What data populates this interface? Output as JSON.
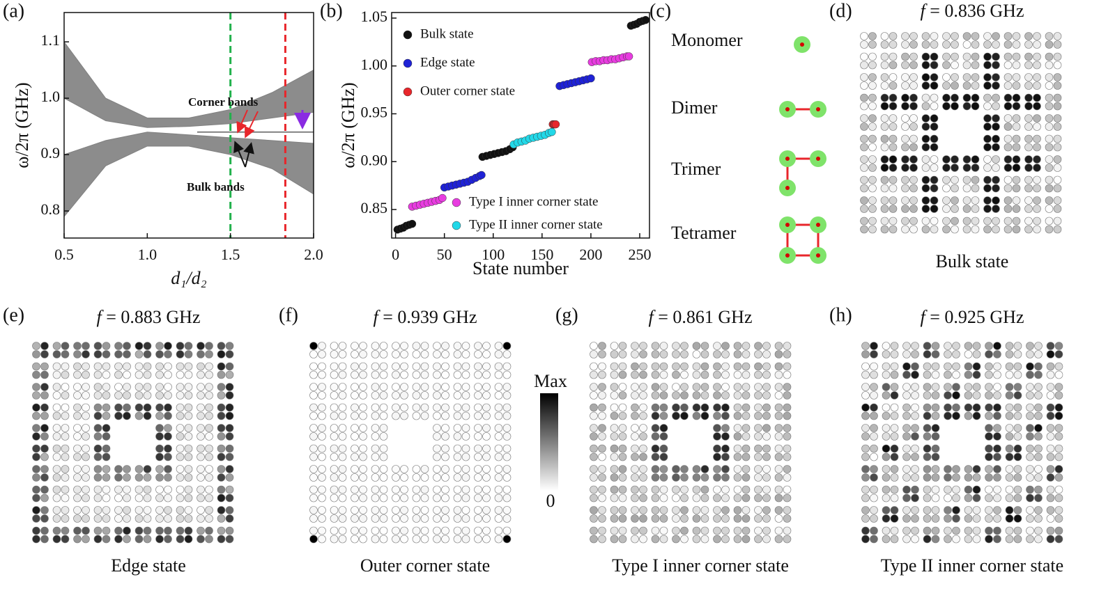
{
  "chart_data": [
    {
      "type": "line",
      "panel": "(a)",
      "ylabel": "ω/2π (GHz)",
      "xlabel": "d₁/d₂",
      "x": [
        0.5,
        0.75,
        1.0,
        1.25,
        1.5,
        1.75,
        2.0
      ],
      "bands": [
        {
          "color": "#808080",
          "lower": [
            1.0,
            0.96,
            0.948,
            0.95,
            0.955,
            0.965,
            0.975
          ],
          "upper": [
            1.1,
            1.0,
            0.965,
            0.965,
            0.98,
            1.01,
            1.05
          ]
        },
        {
          "color": "#808080",
          "lower": [
            0.79,
            0.88,
            0.915,
            0.915,
            0.9,
            0.875,
            0.83
          ],
          "upper": [
            0.9,
            0.925,
            0.94,
            0.935,
            0.93,
            0.925,
            0.92
          ]
        }
      ],
      "corner_band": {
        "color": "#808080",
        "x": [
          1.3,
          2.0
        ],
        "values": [
          0.94,
          0.94
        ]
      },
      "vlines": [
        {
          "x": 1.5,
          "color": "#22b14c"
        },
        {
          "x": 1.83,
          "color": "#e8262b"
        }
      ],
      "annotations": [
        {
          "text": "Corner bands",
          "color": "#e8262b"
        },
        {
          "text": "Bulk bands",
          "color": "#111111"
        }
      ],
      "xlim": [
        0.5,
        2.0
      ],
      "ylim": [
        0.752,
        1.152
      ],
      "xticks": [
        0.5,
        {
          "value": 1.0,
          "label": "1.0"
        },
        1.5,
        {
          "value": 2.0,
          "label": "2.0"
        }
      ],
      "yticks": [
        0.8,
        0.9,
        {
          "value": 1.0,
          "label": "1.0"
        },
        1.1
      ]
    },
    {
      "type": "scatter",
      "panel": "(b)",
      "ylabel": "ω/2π (GHz)",
      "xlabel": "State number",
      "series": [
        {
          "name": "Bulk state",
          "color": "#111111",
          "x": [
            2,
            5,
            8,
            11,
            14,
            17,
            89,
            93,
            97,
            101,
            105,
            109,
            113,
            117,
            120,
            241,
            244,
            247,
            250,
            253,
            256
          ],
          "values": [
            0.829,
            0.83,
            0.831,
            0.833,
            0.834,
            0.835,
            0.905,
            0.906,
            0.907,
            0.908,
            0.909,
            0.91,
            0.911,
            0.913,
            0.915,
            1.042,
            1.043,
            1.044,
            1.046,
            1.047,
            1.048
          ]
        },
        {
          "name": "Edge state",
          "color": "#1f22d6",
          "x": [
            50,
            54,
            58,
            62,
            66,
            70,
            74,
            78,
            82,
            86,
            88,
            168,
            172,
            176,
            180,
            184,
            188,
            192,
            196,
            200
          ],
          "values": [
            0.873,
            0.874,
            0.875,
            0.876,
            0.877,
            0.878,
            0.879,
            0.881,
            0.883,
            0.885,
            0.886,
            0.979,
            0.98,
            0.981,
            0.982,
            0.983,
            0.984,
            0.985,
            0.986,
            0.987
          ]
        },
        {
          "name": "Outer corner state",
          "color": "#e8262b",
          "x": [
            161,
            162,
            163,
            164
          ],
          "values": [
            0.939,
            0.939,
            0.939,
            0.939
          ]
        },
        {
          "name": "Type I inner corner state",
          "color": "#e83ce0",
          "x": [
            17,
            21,
            25,
            29,
            33,
            37,
            41,
            45,
            48,
            201,
            205,
            209,
            213,
            217,
            221,
            225,
            229,
            233,
            237,
            239
          ],
          "values": [
            0.853,
            0.854,
            0.855,
            0.856,
            0.857,
            0.858,
            0.859,
            0.86,
            0.862,
            1.004,
            1.005,
            1.005,
            1.006,
            1.006,
            1.007,
            1.007,
            1.008,
            1.009,
            1.01,
            1.01
          ]
        },
        {
          "name": "Type II inner corner state",
          "color": "#22d8e8",
          "x": [
            121,
            125,
            129,
            133,
            137,
            141,
            145,
            149,
            153,
            157,
            160
          ],
          "values": [
            0.918,
            0.92,
            0.921,
            0.922,
            0.924,
            0.925,
            0.926,
            0.927,
            0.928,
            0.93,
            0.931
          ]
        }
      ],
      "xlim": [
        -4,
        260
      ],
      "ylim": [
        0.8202,
        1.0558
      ],
      "xticks": [
        0,
        50,
        100,
        150,
        200,
        250
      ],
      "yticks": [
        0.85,
        {
          "value": 0.9,
          "label": "0.90"
        },
        0.95,
        {
          "value": 1.0,
          "label": "1.00"
        },
        1.05
      ]
    }
  ],
  "panel_c": {
    "panel": "(c)",
    "items": [
      "Monomer",
      "Dimer",
      "Trimer",
      "Tetramer"
    ]
  },
  "field_panels": [
    {
      "panel": "(d)",
      "symbol": "f",
      "freq": " = 0.836 GHz",
      "caption": "Bulk state"
    },
    {
      "panel": "(e)",
      "symbol": "f",
      "freq": " = 0.883 GHz",
      "caption": "Edge state"
    },
    {
      "panel": "(f)",
      "symbol": "f",
      "freq": " = 0.939 GHz",
      "caption": "Outer corner state"
    },
    {
      "panel": "(g)",
      "symbol": "f",
      "freq": " = 0.861 GHz",
      "caption": "Type I inner corner state"
    },
    {
      "panel": "(h)",
      "symbol": "f",
      "freq": " = 0.925 GHz",
      "caption": "Type II inner corner state"
    }
  ],
  "colorbar": {
    "max": "Max",
    "min": "0"
  }
}
